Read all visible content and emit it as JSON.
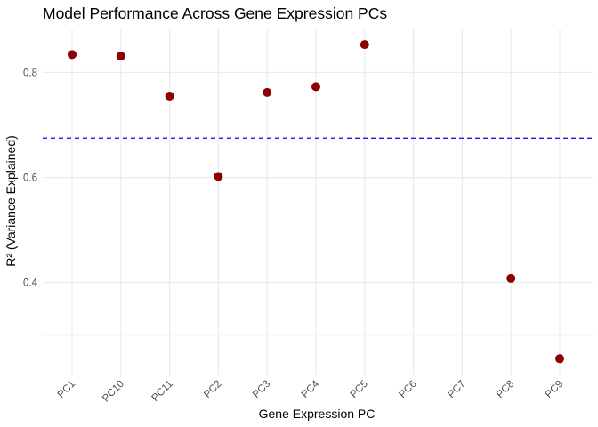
{
  "chart_data": {
    "type": "scatter",
    "title": "Model Performance Across Gene Expression PCs",
    "xlabel": "Gene Expression PC",
    "ylabel": "R² (Variance Explained)",
    "categories": [
      "PC1",
      "PC10",
      "PC11",
      "PC2",
      "PC3",
      "PC4",
      "PC5",
      "PC6",
      "PC7",
      "PC8",
      "PC9"
    ],
    "values": [
      0.834,
      0.831,
      0.755,
      0.602,
      0.762,
      0.773,
      0.853,
      null,
      null,
      0.408,
      0.255
    ],
    "y_ticks": [
      0.4,
      0.6,
      0.8
    ],
    "y_tick_labels": [
      "0.4",
      "0.6",
      "0.8"
    ],
    "ylim": [
      0.225,
      0.882
    ],
    "reference_line": {
      "y": 0.675,
      "style": "dashed",
      "color": "#0000ff"
    },
    "point_color": "#8b0000",
    "grid": true,
    "legend": "none"
  }
}
